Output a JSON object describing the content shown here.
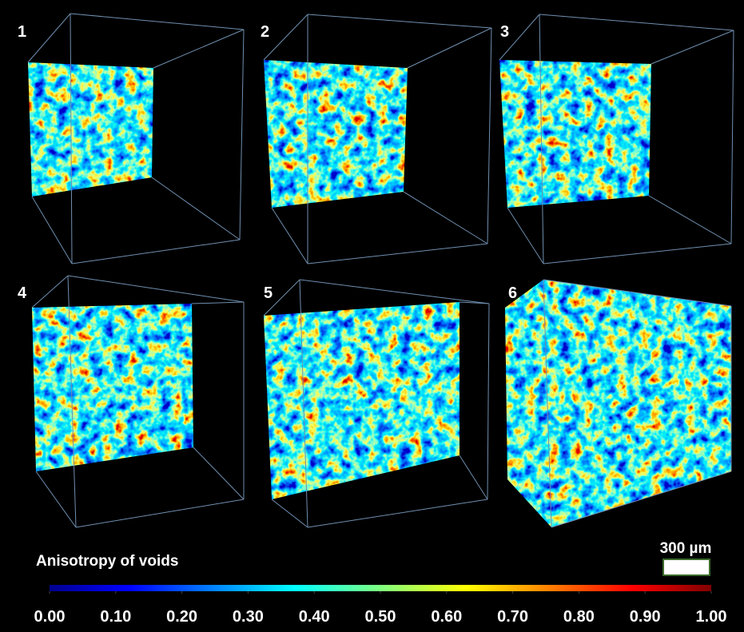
{
  "panels": [
    {
      "label": "1"
    },
    {
      "label": "2"
    },
    {
      "label": "3"
    },
    {
      "label": "4"
    },
    {
      "label": "5"
    },
    {
      "label": "6"
    }
  ],
  "colorbar": {
    "title": "Anisotropy of voids",
    "lim": [
      0,
      1
    ],
    "ticks": [
      {
        "value": 0,
        "label": "0.00"
      },
      {
        "value": 0.1,
        "label": "0.10"
      },
      {
        "value": 0.2,
        "label": "0.20"
      },
      {
        "value": 0.3,
        "label": "0.30"
      },
      {
        "value": 0.4,
        "label": "0.40"
      },
      {
        "value": 0.5,
        "label": "0.50"
      },
      {
        "value": 0.6,
        "label": "0.60"
      },
      {
        "value": 0.7,
        "label": "0.70"
      },
      {
        "value": 0.8,
        "label": "0.80"
      },
      {
        "value": 0.9,
        "label": "0.90"
      },
      {
        "value": 1,
        "label": "1.00"
      }
    ]
  },
  "scale_bar": {
    "label": "300 µm"
  }
}
